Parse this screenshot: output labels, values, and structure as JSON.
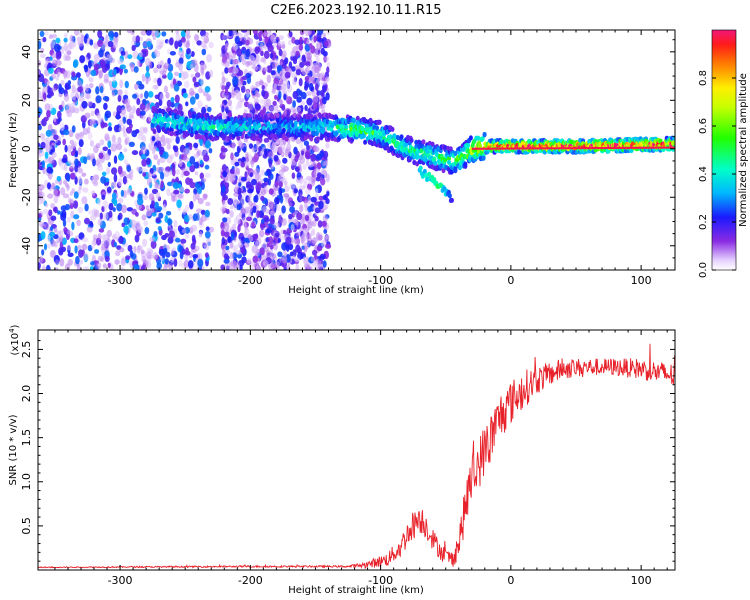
{
  "title": "C2E6.2023.192.10.11.R15",
  "colors": {
    "snr_line": "#e8222a",
    "spec_cold": "#6a1fe0",
    "spec_hot": "#e8222a",
    "axis": "#000000"
  },
  "chart_data": [
    {
      "type": "heatmap",
      "xlabel": "Height of straight line (km)",
      "ylabel": "Frequency (Hz)",
      "xlim": [
        -363,
        126
      ],
      "ylim": [
        -50,
        49
      ],
      "xticks": [
        -300,
        -200,
        -100,
        0,
        100
      ],
      "yticks": [
        -40,
        -20,
        0,
        20,
        40
      ],
      "colorbar": {
        "label": "Normalized spectral amplitude",
        "range": [
          0,
          1
        ],
        "ticks": [
          "0.0",
          "0.2",
          "0.4",
          "0.6",
          "0.8"
        ],
        "colormap": "rainbow"
      },
      "ridge": {
        "x": [
          -275,
          -230,
          -180,
          -140,
          -120,
          -100,
          -80,
          -60,
          -45,
          -38,
          -30,
          -20,
          0,
          50,
          126
        ],
        "y": [
          12,
          9,
          9,
          9,
          8,
          6,
          0,
          -3,
          -5,
          -4,
          0,
          1,
          1,
          1,
          2
        ],
        "amplitude": [
          0.4,
          0.45,
          0.35,
          0.4,
          0.55,
          0.5,
          0.45,
          0.5,
          0.55,
          0.6,
          0.75,
          0.85,
          0.95,
          0.95,
          0.95
        ]
      },
      "branch": {
        "x": [
          -70,
          -55,
          -45
        ],
        "y": [
          -9,
          -15,
          -21
        ],
        "amplitude": [
          0.35,
          0.45,
          0.2
        ]
      },
      "noise_regions": [
        {
          "x": [
            -363,
            -230
          ],
          "y": [
            -50,
            49
          ],
          "level": 0.25
        },
        {
          "x": [
            -222,
            -140
          ],
          "y": [
            -50,
            49
          ],
          "level": 0.2
        }
      ]
    },
    {
      "type": "line",
      "xlabel": "Height of straight line (km)",
      "ylabel": "SNR (10 * v/v)",
      "yscale_label": "(x10",
      "yscale_exp": "4",
      "yscale_close": ")",
      "xlim": [
        -363,
        126
      ],
      "ylim": [
        0,
        2.72
      ],
      "xticks": [
        -300,
        -200,
        -100,
        0,
        100
      ],
      "yticks": [
        0.5,
        1.0,
        1.5,
        2.0,
        2.5
      ],
      "ytick_labels": [
        "0.5",
        "1.0",
        "1.5",
        "2.0",
        "2.5"
      ],
      "series": [
        {
          "envelope_x": [
            -363,
            -200,
            -125,
            -110,
            -95,
            -85,
            -78,
            -70,
            -65,
            -58,
            -50,
            -45,
            -40,
            -35,
            -32,
            -28,
            -22,
            -15,
            -8,
            0,
            10,
            20,
            30,
            40,
            60,
            80,
            100,
            126
          ],
          "envelope_y": [
            0.03,
            0.04,
            0.04,
            0.06,
            0.12,
            0.25,
            0.45,
            0.6,
            0.5,
            0.3,
            0.15,
            0.12,
            0.3,
            0.7,
            0.95,
            1.1,
            1.3,
            1.5,
            1.75,
            1.9,
            2.05,
            2.15,
            2.22,
            2.28,
            2.3,
            2.3,
            2.28,
            2.2
          ],
          "noise": [
            0.005,
            0.01,
            0.01,
            0.04,
            0.08,
            0.12,
            0.16,
            0.18,
            0.15,
            0.12,
            0.1,
            0.1,
            0.18,
            0.25,
            0.3,
            0.3,
            0.3,
            0.3,
            0.28,
            0.25,
            0.22,
            0.16,
            0.14,
            0.12,
            0.1,
            0.1,
            0.12,
            0.14
          ]
        }
      ]
    }
  ]
}
